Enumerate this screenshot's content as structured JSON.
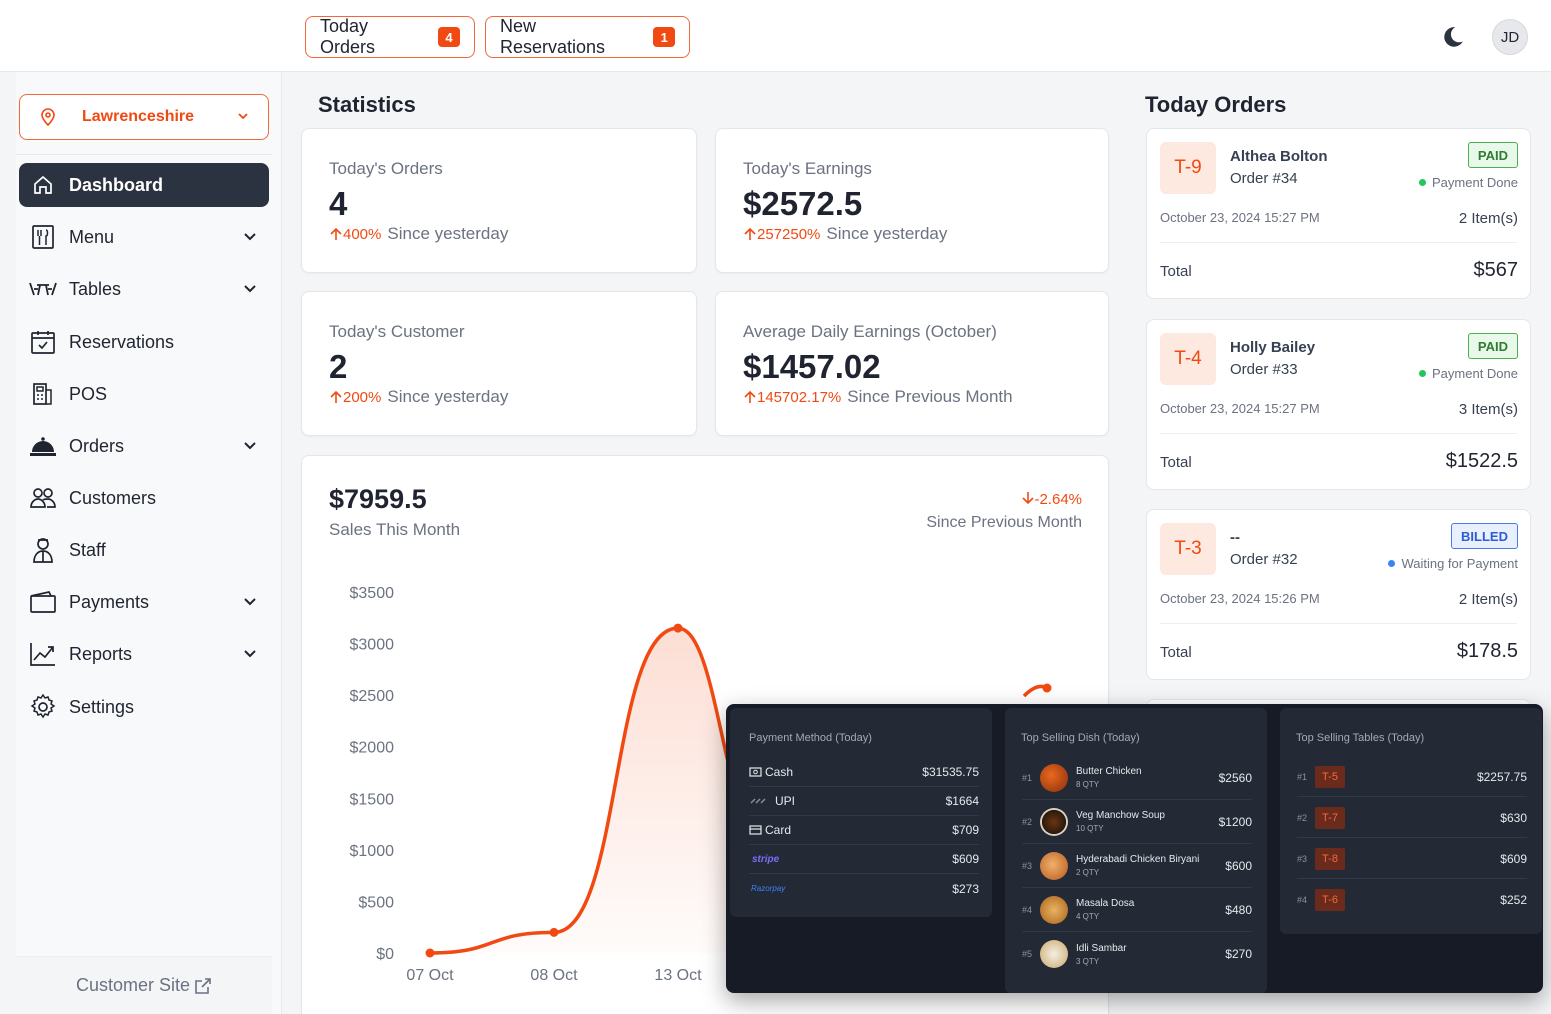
{
  "header": {
    "today_orders_label": "Today Orders",
    "today_orders_count": "4",
    "new_reservations_label": "New Reservations",
    "new_reservations_count": "1",
    "avatar_initials": "JD",
    "theme_icon": "moon-icon"
  },
  "sidebar": {
    "location": "Lawrenceshire",
    "items": [
      {
        "label": "Dashboard",
        "icon": "home-icon",
        "has_chevron": false,
        "active": true
      },
      {
        "label": "Menu",
        "icon": "menu-book-icon",
        "has_chevron": true
      },
      {
        "label": "Tables",
        "icon": "table-icon",
        "has_chevron": true
      },
      {
        "label": "Reservations",
        "icon": "calendar-check-icon",
        "has_chevron": false
      },
      {
        "label": "POS",
        "icon": "pos-icon",
        "has_chevron": false
      },
      {
        "label": "Orders",
        "icon": "cloche-icon",
        "has_chevron": true
      },
      {
        "label": "Customers",
        "icon": "users-icon",
        "has_chevron": false
      },
      {
        "label": "Staff",
        "icon": "staff-icon",
        "has_chevron": false
      },
      {
        "label": "Payments",
        "icon": "wallet-icon",
        "has_chevron": true
      },
      {
        "label": "Reports",
        "icon": "chart-line-icon",
        "has_chevron": true
      },
      {
        "label": "Settings",
        "icon": "gear-icon",
        "has_chevron": false
      }
    ],
    "footer_link": "Customer Site"
  },
  "statistics": {
    "title": "Statistics",
    "cards": [
      {
        "label": "Today's Orders",
        "value": "4",
        "change": "400%",
        "since": "Since yesterday"
      },
      {
        "label": "Today's Earnings",
        "value": "$2572.5",
        "change": "257250%",
        "since": "Since yesterday"
      },
      {
        "label": "Today's Customer",
        "value": "2",
        "change": "200%",
        "since": "Since yesterday"
      },
      {
        "label": "Average Daily Earnings (October)",
        "value": "$1457.02",
        "change": "145702.17%",
        "since": "Since Previous Month"
      }
    ]
  },
  "sales": {
    "value": "$7959.5",
    "label": "Sales This Month",
    "change": "-2.64%",
    "since": "Since Previous Month"
  },
  "chart_data": {
    "type": "line",
    "title": "",
    "xlabel": "",
    "ylabel": "",
    "categories": [
      "07 Oct",
      "08 Oct",
      "13 Oct"
    ],
    "ylim": [
      0,
      3500
    ],
    "yticks": [
      "$0",
      "$500",
      "$1000",
      "$1500",
      "$2000",
      "$2500",
      "$3000",
      "$3500"
    ],
    "series": [
      {
        "values": [
          0,
          200,
          3150
        ],
        "color": "#f04a12"
      }
    ]
  },
  "today_orders": {
    "title": "Today Orders",
    "orders": [
      {
        "table": "T-9",
        "name": "Althea Bolton",
        "order": "Order #34",
        "badge": "PAID",
        "status": "Payment Done",
        "date": "October 23, 2024 15:27 PM",
        "items": "2 Item(s)",
        "total_label": "Total",
        "total": "$567"
      },
      {
        "table": "T-4",
        "name": "Holly Bailey",
        "order": "Order #33",
        "badge": "PAID",
        "status": "Payment Done",
        "date": "October 23, 2024 15:27 PM",
        "items": "3 Item(s)",
        "total_label": "Total",
        "total": "$1522.5"
      },
      {
        "table": "T-3",
        "name": "--",
        "order": "Order #32",
        "badge": "BILLED",
        "status": "Waiting for Payment",
        "date": "October 23, 2024 15:26 PM",
        "items": "2 Item(s)",
        "total_label": "Total",
        "total": "$178.5"
      }
    ]
  },
  "payment_methods": {
    "title": "Payment Method (Today)",
    "rows": [
      {
        "label": "Cash",
        "amount": "$31535.75"
      },
      {
        "label": "UPI",
        "amount": "$1664"
      },
      {
        "label": "Card",
        "amount": "$709"
      },
      {
        "label": "stripe",
        "amount": "$609"
      },
      {
        "label": "Razorpay",
        "amount": "$273"
      }
    ]
  },
  "top_dishes": {
    "title": "Top Selling Dish (Today)",
    "rows": [
      {
        "rank": "#1",
        "name": "Butter Chicken",
        "qty": "8 QTY",
        "amount": "$2560"
      },
      {
        "rank": "#2",
        "name": "Veg Manchow Soup",
        "qty": "10 QTY",
        "amount": "$1200"
      },
      {
        "rank": "#3",
        "name": "Hyderabadi Chicken Biryani",
        "qty": "2 QTY",
        "amount": "$600"
      },
      {
        "rank": "#4",
        "name": "Masala Dosa",
        "qty": "4 QTY",
        "amount": "$480"
      },
      {
        "rank": "#5",
        "name": "Idli Sambar",
        "qty": "3 QTY",
        "amount": "$270"
      }
    ]
  },
  "top_tables": {
    "title": "Top Selling Tables (Today)",
    "rows": [
      {
        "rank": "#1",
        "table": "T-5",
        "amount": "$2257.75"
      },
      {
        "rank": "#2",
        "table": "T-7",
        "amount": "$630"
      },
      {
        "rank": "#3",
        "table": "T-8",
        "amount": "$609"
      },
      {
        "rank": "#4",
        "table": "T-6",
        "amount": "$252"
      }
    ]
  }
}
